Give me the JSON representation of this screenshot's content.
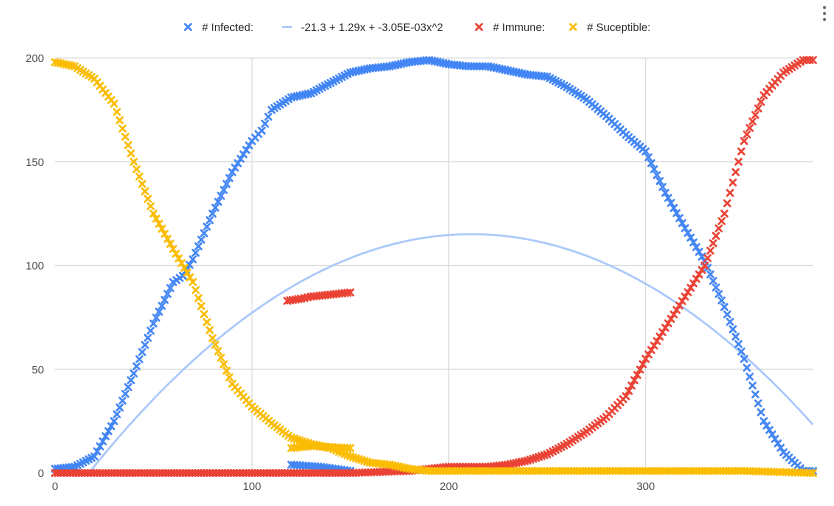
{
  "chart_data": {
    "type": "scatter",
    "title": "",
    "xlabel": "",
    "ylabel": "",
    "xlim": [
      0,
      385
    ],
    "ylim": [
      0,
      200
    ],
    "x_ticks": [
      0,
      100,
      200,
      300
    ],
    "y_ticks": [
      0,
      50,
      100,
      150,
      200
    ],
    "grid": true,
    "legend_position": "top",
    "series": [
      {
        "name": "# Infected:",
        "marker": "x",
        "color": "#4285f4",
        "points": [
          [
            0,
            2
          ],
          [
            10,
            3
          ],
          [
            20,
            8
          ],
          [
            30,
            25
          ],
          [
            40,
            48
          ],
          [
            50,
            72
          ],
          [
            60,
            92
          ],
          [
            65,
            95
          ],
          [
            70,
            103
          ],
          [
            80,
            125
          ],
          [
            90,
            145
          ],
          [
            100,
            160
          ],
          [
            105,
            165
          ],
          [
            110,
            175
          ],
          [
            120,
            181
          ],
          [
            130,
            183
          ],
          [
            140,
            188
          ],
          [
            150,
            193
          ],
          [
            160,
            195
          ],
          [
            170,
            196
          ],
          [
            180,
            198
          ],
          [
            190,
            199
          ],
          [
            200,
            197
          ],
          [
            210,
            196
          ],
          [
            220,
            196
          ],
          [
            230,
            194
          ],
          [
            240,
            192
          ],
          [
            250,
            191
          ],
          [
            260,
            186
          ],
          [
            270,
            180
          ],
          [
            280,
            172
          ],
          [
            290,
            163
          ],
          [
            300,
            155
          ],
          [
            310,
            135
          ],
          [
            320,
            118
          ],
          [
            330,
            102
          ],
          [
            340,
            80
          ],
          [
            350,
            55
          ],
          [
            360,
            25
          ],
          [
            370,
            10
          ],
          [
            380,
            1
          ],
          [
            385,
            1
          ],
          [
            120,
            4
          ],
          [
            135,
            3
          ],
          [
            150,
            1
          ]
        ]
      },
      {
        "name": "-21.3 + 1.29x + -3.05E-03x^2",
        "marker": "line",
        "color": "#a8c7fa",
        "coefficients": [
          -21.3,
          1.29,
          -0.00305
        ]
      },
      {
        "name": "# Immune:",
        "marker": "x",
        "color": "#ea4335",
        "points": [
          [
            0,
            0
          ],
          [
            50,
            0
          ],
          [
            100,
            0
          ],
          [
            150,
            0
          ],
          [
            180,
            1
          ],
          [
            190,
            2
          ],
          [
            200,
            3
          ],
          [
            210,
            3
          ],
          [
            220,
            3
          ],
          [
            230,
            4
          ],
          [
            240,
            6
          ],
          [
            250,
            9
          ],
          [
            260,
            14
          ],
          [
            270,
            20
          ],
          [
            280,
            27
          ],
          [
            290,
            37
          ],
          [
            300,
            55
          ],
          [
            310,
            70
          ],
          [
            320,
            85
          ],
          [
            330,
            100
          ],
          [
            340,
            125
          ],
          [
            350,
            160
          ],
          [
            360,
            182
          ],
          [
            370,
            193
          ],
          [
            380,
            199
          ],
          [
            385,
            199
          ],
          [
            118,
            83
          ],
          [
            125,
            84
          ],
          [
            130,
            85
          ],
          [
            140,
            86
          ],
          [
            150,
            87
          ]
        ]
      },
      {
        "name": "# Suceptible:",
        "marker": "x",
        "color": "#fbbc04",
        "points": [
          [
            0,
            198
          ],
          [
            10,
            196
          ],
          [
            20,
            190
          ],
          [
            30,
            178
          ],
          [
            40,
            150
          ],
          [
            50,
            125
          ],
          [
            60,
            108
          ],
          [
            70,
            92
          ],
          [
            80,
            65
          ],
          [
            90,
            43
          ],
          [
            100,
            32
          ],
          [
            110,
            24
          ],
          [
            120,
            17
          ],
          [
            130,
            14
          ],
          [
            140,
            12
          ],
          [
            150,
            8
          ],
          [
            160,
            5
          ],
          [
            170,
            4
          ],
          [
            180,
            2
          ],
          [
            190,
            1
          ],
          [
            200,
            1
          ],
          [
            250,
            1
          ],
          [
            300,
            1
          ],
          [
            350,
            1
          ],
          [
            385,
            0
          ],
          [
            120,
            12
          ],
          [
            130,
            13
          ],
          [
            150,
            12
          ]
        ]
      }
    ]
  }
}
